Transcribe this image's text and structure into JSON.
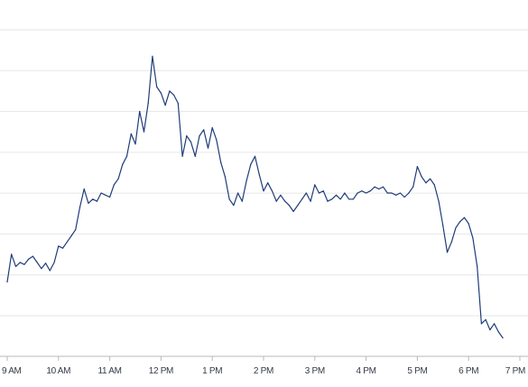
{
  "chart_data": {
    "type": "line",
    "title": "",
    "xlabel": "",
    "ylabel": "",
    "x_ticks": [
      "9 AM",
      "10 AM",
      "11 AM",
      "12 PM",
      "1 PM",
      "2 PM",
      "3 PM",
      "4 PM",
      "5 PM",
      "6 PM",
      "7 PM"
    ],
    "y_gridlines": 8,
    "grid": "horizontal",
    "legend": "none",
    "series": [
      {
        "color": "#1f3d7a",
        "points": [
          [
            "09:00",
            18.2
          ],
          [
            "09:05",
            25.0
          ],
          [
            "09:10",
            22.0
          ],
          [
            "09:15",
            23.0
          ],
          [
            "09:20",
            22.5
          ],
          [
            "09:25",
            23.8
          ],
          [
            "09:30",
            24.5
          ],
          [
            "09:35",
            23.0
          ],
          [
            "09:40",
            21.5
          ],
          [
            "09:45",
            22.8
          ],
          [
            "09:50",
            21.0
          ],
          [
            "09:55",
            23.0
          ],
          [
            "10:00",
            27.0
          ],
          [
            "10:05",
            26.5
          ],
          [
            "10:10",
            28.0
          ],
          [
            "10:15",
            29.5
          ],
          [
            "10:20",
            31.0
          ],
          [
            "10:25",
            36.5
          ],
          [
            "10:30",
            41.0
          ],
          [
            "10:35",
            37.5
          ],
          [
            "10:40",
            38.5
          ],
          [
            "10:45",
            38.0
          ],
          [
            "10:50",
            40.0
          ],
          [
            "10:55",
            39.5
          ],
          [
            "11:00",
            39.0
          ],
          [
            "11:05",
            42.0
          ],
          [
            "11:10",
            43.5
          ],
          [
            "11:15",
            47.0
          ],
          [
            "11:20",
            49.0
          ],
          [
            "11:25",
            54.5
          ],
          [
            "11:30",
            52.0
          ],
          [
            "11:35",
            60.0
          ],
          [
            "11:40",
            55.0
          ],
          [
            "11:45",
            62.0
          ],
          [
            "11:50",
            73.5
          ],
          [
            "11:55",
            66.0
          ],
          [
            "12:00",
            64.5
          ],
          [
            "12:05",
            61.5
          ],
          [
            "12:10",
            65.0
          ],
          [
            "12:15",
            64.0
          ],
          [
            "12:20",
            62.0
          ],
          [
            "12:25",
            49.0
          ],
          [
            "12:30",
            54.0
          ],
          [
            "12:35",
            52.5
          ],
          [
            "12:40",
            49.0
          ],
          [
            "12:45",
            54.0
          ],
          [
            "12:50",
            55.5
          ],
          [
            "12:55",
            51.0
          ],
          [
            "13:00",
            56.0
          ],
          [
            "13:05",
            53.0
          ],
          [
            "13:10",
            47.5
          ],
          [
            "13:15",
            44.0
          ],
          [
            "13:20",
            38.5
          ],
          [
            "13:25",
            37.0
          ],
          [
            "13:30",
            40.0
          ],
          [
            "13:35",
            38.0
          ],
          [
            "13:40",
            43.0
          ],
          [
            "13:45",
            47.0
          ],
          [
            "13:50",
            49.0
          ],
          [
            "13:55",
            44.5
          ],
          [
            "14:00",
            40.5
          ],
          [
            "14:05",
            42.5
          ],
          [
            "14:10",
            40.5
          ],
          [
            "14:15",
            38.0
          ],
          [
            "14:20",
            39.5
          ],
          [
            "14:25",
            38.0
          ],
          [
            "14:30",
            37.0
          ],
          [
            "14:35",
            35.5
          ],
          [
            "14:40",
            37.0
          ],
          [
            "14:45",
            38.5
          ],
          [
            "14:50",
            40.0
          ],
          [
            "14:55",
            38.0
          ],
          [
            "15:00",
            42.0
          ],
          [
            "15:05",
            40.0
          ],
          [
            "15:10",
            40.5
          ],
          [
            "15:15",
            38.0
          ],
          [
            "15:20",
            38.5
          ],
          [
            "15:25",
            39.5
          ],
          [
            "15:30",
            38.5
          ],
          [
            "15:35",
            40.0
          ],
          [
            "15:40",
            38.5
          ],
          [
            "15:45",
            38.5
          ],
          [
            "15:50",
            40.0
          ],
          [
            "15:55",
            40.5
          ],
          [
            "16:00",
            40.0
          ],
          [
            "16:05",
            40.5
          ],
          [
            "16:10",
            41.5
          ],
          [
            "16:15",
            41.0
          ],
          [
            "16:20",
            41.5
          ],
          [
            "16:25",
            40.0
          ],
          [
            "16:30",
            40.0
          ],
          [
            "16:35",
            39.5
          ],
          [
            "16:40",
            40.0
          ],
          [
            "16:45",
            39.0
          ],
          [
            "16:50",
            40.0
          ],
          [
            "16:55",
            41.5
          ],
          [
            "17:00",
            46.5
          ],
          [
            "17:05",
            44.0
          ],
          [
            "17:10",
            42.5
          ],
          [
            "17:15",
            43.5
          ],
          [
            "17:20",
            42.0
          ],
          [
            "17:25",
            38.0
          ],
          [
            "17:30",
            32.0
          ],
          [
            "17:35",
            25.5
          ],
          [
            "17:40",
            28.0
          ],
          [
            "17:45",
            31.5
          ],
          [
            "17:50",
            33.0
          ],
          [
            "17:55",
            34.0
          ],
          [
            "18:00",
            32.5
          ],
          [
            "18:05",
            29.0
          ],
          [
            "18:10",
            22.0
          ],
          [
            "18:15",
            8.0
          ],
          [
            "18:20",
            9.0
          ],
          [
            "18:25",
            6.5
          ],
          [
            "18:30",
            8.0
          ],
          [
            "18:35",
            6.0
          ],
          [
            "18:40",
            4.5
          ]
        ]
      }
    ]
  }
}
